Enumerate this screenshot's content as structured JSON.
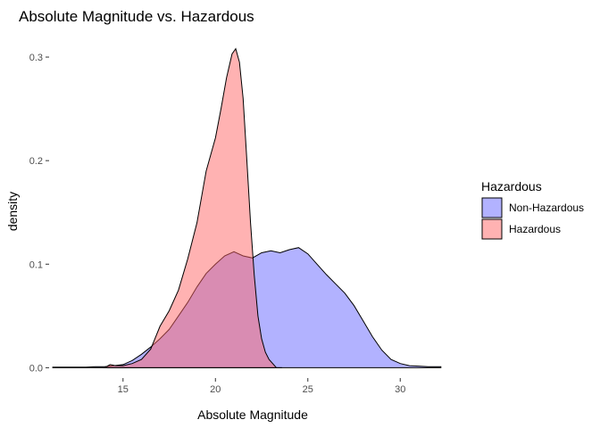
{
  "chart_data": {
    "type": "area",
    "title": "Absolute Magnitude vs. Hazardous",
    "xlabel": "Absolute Magnitude",
    "ylabel": "density",
    "xlim": [
      11.0,
      32.5
    ],
    "ylim": [
      -0.01,
      0.325
    ],
    "x_ticks": [
      15,
      20,
      25,
      30
    ],
    "y_ticks": [
      0.0,
      0.1,
      0.2,
      0.3
    ],
    "y_tick_labels": [
      "0.0",
      "0.1",
      "0.2",
      "0.3"
    ],
    "grid": false,
    "legend": {
      "title": "Hazardous",
      "position": "right",
      "entries": [
        {
          "label": "Non-Hazardous",
          "color": "#6666ff"
        },
        {
          "label": "Hazardous",
          "color": "#ff6666"
        }
      ]
    },
    "series": [
      {
        "name": "Non-Hazardous",
        "fill": "#b3b3ff",
        "points": [
          [
            11.2,
            0.0005
          ],
          [
            12.0,
            0.0005
          ],
          [
            13.0,
            0.0005
          ],
          [
            13.5,
            0.001
          ],
          [
            14.0,
            0.001
          ],
          [
            14.5,
            0.002
          ],
          [
            15.0,
            0.003
          ],
          [
            15.5,
            0.007
          ],
          [
            16.0,
            0.013
          ],
          [
            16.5,
            0.02
          ],
          [
            17.0,
            0.028
          ],
          [
            17.5,
            0.037
          ],
          [
            18.0,
            0.05
          ],
          [
            18.5,
            0.063
          ],
          [
            19.0,
            0.078
          ],
          [
            19.5,
            0.091
          ],
          [
            20.0,
            0.1
          ],
          [
            20.5,
            0.108
          ],
          [
            21.0,
            0.112
          ],
          [
            21.5,
            0.108
          ],
          [
            22.0,
            0.106
          ],
          [
            22.5,
            0.111
          ],
          [
            23.0,
            0.113
          ],
          [
            23.5,
            0.111
          ],
          [
            24.0,
            0.114
          ],
          [
            24.5,
            0.116
          ],
          [
            25.0,
            0.11
          ],
          [
            25.5,
            0.1
          ],
          [
            26.0,
            0.09
          ],
          [
            26.5,
            0.081
          ],
          [
            27.0,
            0.072
          ],
          [
            27.5,
            0.06
          ],
          [
            28.0,
            0.045
          ],
          [
            28.5,
            0.03
          ],
          [
            29.0,
            0.017
          ],
          [
            29.5,
            0.008
          ],
          [
            30.0,
            0.004
          ],
          [
            30.5,
            0.002
          ],
          [
            31.0,
            0.0015
          ],
          [
            31.5,
            0.001
          ],
          [
            32.2,
            0.001
          ]
        ]
      },
      {
        "name": "Hazardous",
        "fill": "#ffb3b3",
        "points": [
          [
            14.0,
            0.0
          ],
          [
            14.3,
            0.003
          ],
          [
            14.6,
            0.002
          ],
          [
            15.0,
            0.002
          ],
          [
            15.5,
            0.004
          ],
          [
            16.0,
            0.008
          ],
          [
            16.5,
            0.018
          ],
          [
            17.0,
            0.04
          ],
          [
            17.5,
            0.055
          ],
          [
            18.0,
            0.075
          ],
          [
            18.5,
            0.105
          ],
          [
            19.0,
            0.14
          ],
          [
            19.5,
            0.19
          ],
          [
            20.0,
            0.222
          ],
          [
            20.3,
            0.25
          ],
          [
            20.6,
            0.28
          ],
          [
            20.9,
            0.303
          ],
          [
            21.1,
            0.308
          ],
          [
            21.3,
            0.295
          ],
          [
            21.5,
            0.26
          ],
          [
            21.7,
            0.2
          ],
          [
            21.9,
            0.14
          ],
          [
            22.1,
            0.09
          ],
          [
            22.3,
            0.05
          ],
          [
            22.5,
            0.028
          ],
          [
            22.7,
            0.015
          ],
          [
            22.9,
            0.008
          ],
          [
            23.1,
            0.004
          ],
          [
            23.3,
            0.0
          ],
          [
            23.6,
            0.0
          ]
        ]
      }
    ]
  }
}
